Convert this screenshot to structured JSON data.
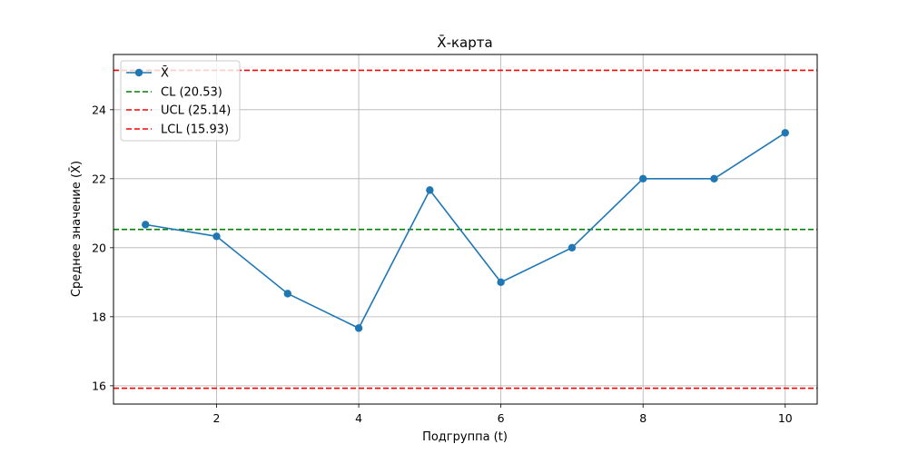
{
  "chart_data": {
    "type": "line",
    "title": "X̄-карта",
    "xlabel": "Подгруппа (t)",
    "ylabel": "Среднее значение (X̄)",
    "xlim": [
      0.55,
      10.45
    ],
    "ylim": [
      15.47,
      25.6
    ],
    "x_ticks": [
      2,
      4,
      6,
      8,
      10
    ],
    "y_ticks": [
      16,
      18,
      20,
      22,
      24
    ],
    "grid": true,
    "legend_position": "upper-left",
    "series": [
      {
        "name": "X̄",
        "color": "#1f77b4",
        "marker": "circle",
        "x": [
          1,
          2,
          3,
          4,
          5,
          6,
          7,
          8,
          9,
          10
        ],
        "values": [
          20.67,
          20.33,
          18.67,
          17.67,
          21.67,
          19.0,
          20.0,
          22.0,
          22.0,
          23.33
        ]
      }
    ],
    "reference_lines": [
      {
        "name": "CL (20.53)",
        "value": 20.53,
        "color": "#008000",
        "style": "dashed"
      },
      {
        "name": "UCL (25.14)",
        "value": 25.14,
        "color": "#ff0000",
        "style": "dashed"
      },
      {
        "name": "LCL (15.93)",
        "value": 15.93,
        "color": "#ff0000",
        "style": "dashed"
      }
    ]
  }
}
